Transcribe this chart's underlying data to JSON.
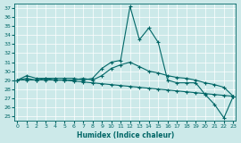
{
  "xlabel": "Humidex (Indice chaleur)",
  "x": [
    0,
    1,
    2,
    3,
    4,
    5,
    6,
    7,
    8,
    9,
    10,
    11,
    12,
    13,
    14,
    15,
    16,
    17,
    18,
    19,
    20,
    21,
    22,
    23
  ],
  "y_main": [
    29.0,
    29.5,
    29.2,
    29.2,
    29.2,
    29.2,
    29.2,
    29.0,
    29.2,
    30.3,
    31.0,
    31.2,
    37.2,
    33.5,
    34.8,
    33.2,
    29.0,
    28.7,
    28.7,
    28.7,
    27.4,
    26.3,
    24.8,
    27.2
  ],
  "y_upper": [
    29.0,
    29.2,
    29.0,
    29.2,
    29.0,
    29.0,
    29.0,
    29.2,
    29.0,
    29.5,
    30.3,
    30.7,
    31.0,
    30.5,
    30.0,
    29.8,
    29.5,
    29.3,
    29.2,
    29.0,
    28.7,
    28.5,
    28.2,
    27.2
  ],
  "y_lower": [
    29.0,
    29.0,
    29.0,
    29.0,
    29.0,
    29.0,
    28.9,
    28.8,
    28.7,
    28.6,
    28.5,
    28.4,
    28.3,
    28.2,
    28.1,
    28.0,
    27.9,
    27.8,
    27.7,
    27.6,
    27.5,
    27.4,
    27.3,
    27.2
  ],
  "bg_color": "#cce9e9",
  "line_color": "#006666",
  "ylim": [
    24.5,
    37.5
  ],
  "xlim": [
    -0.3,
    23.3
  ],
  "yticks": [
    25,
    26,
    27,
    28,
    29,
    30,
    31,
    32,
    33,
    34,
    35,
    36,
    37
  ],
  "xticks": [
    0,
    1,
    2,
    3,
    4,
    5,
    6,
    7,
    8,
    9,
    10,
    11,
    12,
    13,
    14,
    15,
    16,
    17,
    18,
    19,
    20,
    21,
    22,
    23
  ],
  "grid_color": "#b0d8d8"
}
